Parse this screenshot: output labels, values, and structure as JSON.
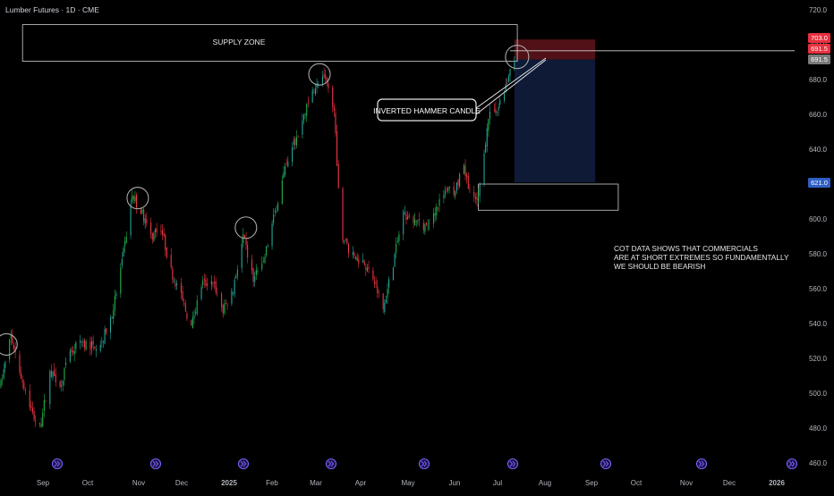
{
  "header": {
    "symbol_label": "Lumber Futures · 1D · CME"
  },
  "annotations": {
    "supply_zone": "SUPPLY ZONE",
    "callout": "INVERTED HAMMER CANDLE",
    "note_lines": [
      "COT DATA SHOWS THAT COMMERCIALS",
      "ARE AT SHORT EXTREMES SO FUNDAMENTALLY",
      "WE SHOULD BE BEARISH"
    ]
  },
  "price_badges": [
    {
      "label": "703.0",
      "value": 703.0,
      "color": "#e8303e"
    },
    {
      "label": "691.5",
      "value": 691.5,
      "color": "#e8303e"
    },
    {
      "label": "691.5",
      "value": 691.5,
      "color": "#7a7a7a"
    },
    {
      "label": "621.0",
      "value": 621.0,
      "color": "#2f5fc4"
    }
  ],
  "colors": {
    "up": "#26a69a",
    "up_bright": "#22b14c",
    "down": "#ef3545",
    "grid_text": "#b2b5be",
    "event_icon": "#7b61ff"
  },
  "event_icon": "double-chevron-right-icon",
  "chart_data": {
    "type": "candlestick",
    "title": "Lumber Futures · 1D · CME",
    "ylim": [
      460,
      720
    ],
    "y_ticks": [
      "720.0",
      "700.0",
      "680.0",
      "660.0",
      "640.0",
      "620.0",
      "600.0",
      "580.0",
      "560.0",
      "540.0",
      "520.0",
      "500.0",
      "480.0",
      "460.0"
    ],
    "x_ticks": [
      "Sep",
      "Oct",
      "Nov",
      "Dec",
      "2025",
      "Feb",
      "Mar",
      "Apr",
      "May",
      "Jun",
      "Jul",
      "Aug",
      "Sep",
      "Oct",
      "Nov",
      "Dec",
      "2026"
    ],
    "grid": false,
    "zones": [
      {
        "name": "supply_zone",
        "y_from": 690.5,
        "y_to": 711.5,
        "x_from": "2024-08-28",
        "x_to": "2025-08-06"
      },
      {
        "name": "support_box",
        "y_from": 605,
        "y_to": 620,
        "x_from": "2025-07-10",
        "x_to": "2025-10-15"
      }
    ],
    "position": {
      "type": "short",
      "entry": 691.5,
      "stop": 703.0,
      "target": 621.0,
      "x_from": "2025-08-04",
      "x_to": "2025-09-29"
    },
    "highlighted_candles": [
      "2024-08-15",
      "2024-11-14",
      "2025-01-28",
      "2025-03-20",
      "2025-08-04"
    ],
    "price_path": [
      {
        "x": "2024-08-13",
        "y": 505
      },
      {
        "x": "2024-08-20",
        "y": 533
      },
      {
        "x": "2024-08-27",
        "y": 510
      },
      {
        "x": "2024-09-04",
        "y": 488
      },
      {
        "x": "2024-09-09",
        "y": 480
      },
      {
        "x": "2024-09-16",
        "y": 512
      },
      {
        "x": "2024-09-23",
        "y": 505
      },
      {
        "x": "2024-09-30",
        "y": 522
      },
      {
        "x": "2024-10-07",
        "y": 530
      },
      {
        "x": "2024-10-15",
        "y": 527
      },
      {
        "x": "2024-10-22",
        "y": 530
      },
      {
        "x": "2024-10-29",
        "y": 545
      },
      {
        "x": "2024-11-05",
        "y": 575
      },
      {
        "x": "2024-11-12",
        "y": 613
      },
      {
        "x": "2024-11-18",
        "y": 605
      },
      {
        "x": "2024-11-25",
        "y": 590
      },
      {
        "x": "2024-12-02",
        "y": 595
      },
      {
        "x": "2024-12-09",
        "y": 570
      },
      {
        "x": "2024-12-16",
        "y": 555
      },
      {
        "x": "2024-12-23",
        "y": 538
      },
      {
        "x": "2024-12-30",
        "y": 562
      },
      {
        "x": "2025-01-07",
        "y": 565
      },
      {
        "x": "2025-01-14",
        "y": 547
      },
      {
        "x": "2025-01-21",
        "y": 560
      },
      {
        "x": "2025-01-28",
        "y": 590
      },
      {
        "x": "2025-02-04",
        "y": 565
      },
      {
        "x": "2025-02-11",
        "y": 575
      },
      {
        "x": "2025-02-18",
        "y": 600
      },
      {
        "x": "2025-02-25",
        "y": 625
      },
      {
        "x": "2025-03-04",
        "y": 642
      },
      {
        "x": "2025-03-11",
        "y": 660
      },
      {
        "x": "2025-03-18",
        "y": 675
      },
      {
        "x": "2025-03-25",
        "y": 680
      },
      {
        "x": "2025-04-01",
        "y": 665
      },
      {
        "x": "2025-04-03",
        "y": 628
      },
      {
        "x": "2025-04-07",
        "y": 590
      },
      {
        "x": "2025-04-14",
        "y": 578
      },
      {
        "x": "2025-04-21",
        "y": 576
      },
      {
        "x": "2025-04-28",
        "y": 566
      },
      {
        "x": "2025-05-05",
        "y": 548
      },
      {
        "x": "2025-05-12",
        "y": 575
      },
      {
        "x": "2025-05-19",
        "y": 603
      },
      {
        "x": "2025-05-26",
        "y": 600
      },
      {
        "x": "2025-06-02",
        "y": 595
      },
      {
        "x": "2025-06-09",
        "y": 604
      },
      {
        "x": "2025-06-16",
        "y": 615
      },
      {
        "x": "2025-06-23",
        "y": 617
      },
      {
        "x": "2025-06-30",
        "y": 628
      },
      {
        "x": "2025-07-07",
        "y": 610
      },
      {
        "x": "2025-07-10",
        "y": 613
      },
      {
        "x": "2025-07-17",
        "y": 658
      },
      {
        "x": "2025-07-24",
        "y": 665
      },
      {
        "x": "2025-07-31",
        "y": 682
      },
      {
        "x": "2025-08-04",
        "y": 691.5
      }
    ]
  }
}
